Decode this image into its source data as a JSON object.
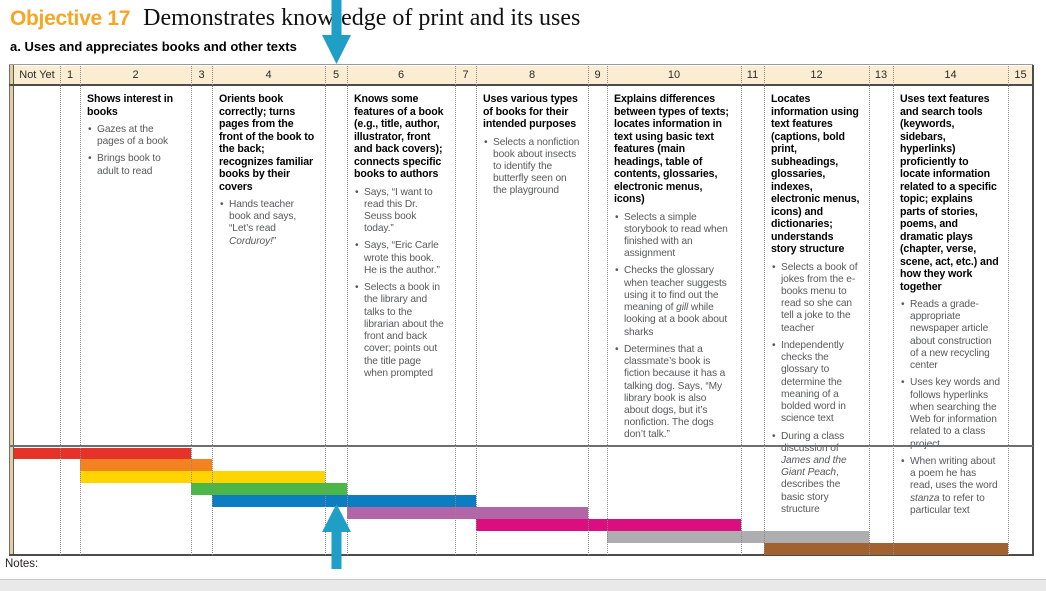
{
  "page": {
    "objective_label": "Objective 17",
    "objective_title": "Demonstrates knowledge of print and its uses",
    "dimension": "a. Uses and appreciates books and other texts",
    "notes_label": "Notes:"
  },
  "colors": {
    "accent_orange": "#F5A623",
    "header_cream": "#FAEDD2",
    "arrow_teal": "#1F9EC6",
    "tan_edge": "#E3CC9E"
  },
  "scale": {
    "levels": [
      "Not Yet",
      "1",
      "2",
      "3",
      "4",
      "5",
      "6",
      "7",
      "8",
      "9",
      "10",
      "11",
      "12",
      "13",
      "14",
      "15"
    ]
  },
  "indicator": {
    "level": "5"
  },
  "columns": [
    {
      "level": "2",
      "heading": "Shows interest in books",
      "bullets": [
        [
          {
            "t": "Gazes at the pages of a book"
          }
        ],
        [
          {
            "t": "Brings book to adult to read"
          }
        ]
      ]
    },
    {
      "level": "4",
      "heading": "Orients book correctly; turns pages from the front of the book to the back; recognizes familiar books by their covers",
      "bullets": [
        [
          {
            "t": "Hands teacher book and says, “Let’s read "
          },
          {
            "t": "Corduroy!",
            "i": true
          },
          {
            "t": "”"
          }
        ]
      ]
    },
    {
      "level": "6",
      "heading": "Knows some features of a book (e.g., title, author, illustrator, front and back covers); connects specific books to authors",
      "bullets": [
        [
          {
            "t": "Says, “I want to read this Dr. Seuss book today.”"
          }
        ],
        [
          {
            "t": "Says, “Eric Carle wrote this book. He is the author.”"
          }
        ],
        [
          {
            "t": "Selects a book in the library and talks to the librarian about the front and back cover; points out the title page when prompted"
          }
        ]
      ]
    },
    {
      "level": "8",
      "heading": "Uses various types of books for their intended purposes",
      "bullets": [
        [
          {
            "t": "Selects a nonfiction book about insects to identify the butterfly seen on the playground"
          }
        ]
      ]
    },
    {
      "level": "10",
      "heading": "Explains differences between types of texts; locates information in text using basic text features (main headings, table of contents, glossaries, electronic menus, icons)",
      "bullets": [
        [
          {
            "t": "Selects a simple storybook to read when finished with an assignment"
          }
        ],
        [
          {
            "t": "Checks the glossary when teacher suggests using it to find out the meaning of "
          },
          {
            "t": "gill",
            "i": true
          },
          {
            "t": " while looking at a book about sharks"
          }
        ],
        [
          {
            "t": "Determines that a classmate’s book is fiction because it has a talking dog. Says, “My library book is also about dogs, but it’s nonfiction. The dogs don’t talk.”"
          }
        ]
      ]
    },
    {
      "level": "12",
      "heading": "Locates information using text features (captions, bold print, subheadings, glossaries, indexes, electronic menus, icons) and dictionaries; understands story structure",
      "bullets": [
        [
          {
            "t": "Selects a book of jokes from the e-books menu to read so she can tell a joke to the teacher"
          }
        ],
        [
          {
            "t": "Independently checks the glossary to determine the meaning of a bolded word in science text"
          }
        ],
        [
          {
            "t": "During a class discussion of "
          },
          {
            "t": "James and the Giant Peach",
            "i": true
          },
          {
            "t": ", describes the basic story structure"
          }
        ]
      ]
    },
    {
      "level": "14",
      "heading": "Uses text features and search tools (keywords, sidebars, hyperlinks) proficiently to locate information related to a specific topic; explains parts of stories, poems, and dramatic plays (chapter, verse, scene, act, etc.) and how they work together",
      "bullets": [
        [
          {
            "t": "Reads a grade-appropriate newspaper article about construction of a new recycling center"
          }
        ],
        [
          {
            "t": "Uses key words and follows hyperlinks when searching the Web for information related to a class project"
          }
        ],
        [
          {
            "t": "When writing about a poem he has read, uses the word "
          },
          {
            "t": "stanza",
            "i": true
          },
          {
            "t": " to refer to particular text"
          }
        ]
      ]
    }
  ],
  "bands": [
    {
      "name": "red",
      "color": "#E5332A",
      "from": "Not Yet",
      "to": "2"
    },
    {
      "name": "orange",
      "color": "#F58220",
      "from": "2",
      "to": "3"
    },
    {
      "name": "yellow",
      "color": "#FFD400",
      "from": "2",
      "to": "4"
    },
    {
      "name": "green",
      "color": "#4BB748",
      "from": "3",
      "to": "5"
    },
    {
      "name": "blue",
      "color": "#0D7DC1",
      "from": "4",
      "to": "7"
    },
    {
      "name": "purple",
      "color": "#B266A7",
      "from": "6",
      "to": "8"
    },
    {
      "name": "magenta",
      "color": "#DA0E7F",
      "from": "8",
      "to": "10"
    },
    {
      "name": "gray",
      "color": "#AEAEB1",
      "from": "10",
      "to": "12"
    },
    {
      "name": "brown",
      "color": "#A2622F",
      "from": "12",
      "to": "14"
    }
  ]
}
